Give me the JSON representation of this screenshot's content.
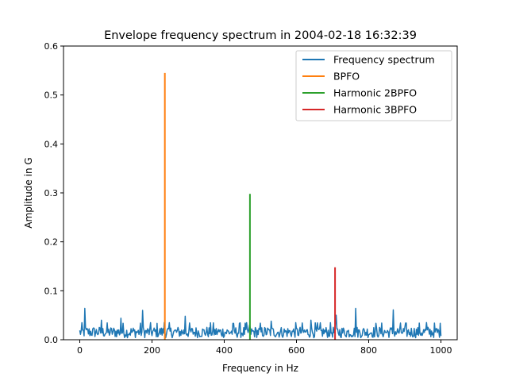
{
  "chart_data": {
    "type": "line",
    "title": "Envelope frequency spectrum in 2004-02-18 16:32:39",
    "xlabel": "Frequency in Hz",
    "ylabel": "Amplitude in G",
    "xlim": [
      -45,
      1045
    ],
    "ylim": [
      0,
      0.6
    ],
    "xticks": [
      "0",
      "200",
      "400",
      "600",
      "800",
      "1000"
    ],
    "yticks": [
      "0.0",
      "0.1",
      "0.2",
      "0.3",
      "0.4",
      "0.5",
      "0.6"
    ],
    "legend_position": "top-right",
    "grid": false,
    "spectrum_peaks": {
      "x": [
        15,
        60,
        115,
        175,
        235,
        293,
        470,
        530,
        640,
        710,
        765,
        868,
        960
      ],
      "y": [
        0.064,
        0.04,
        0.044,
        0.06,
        0.035,
        0.048,
        0.03,
        0.038,
        0.04,
        0.05,
        0.064,
        0.061,
        0.035
      ]
    },
    "series": [
      {
        "name": "Frequency spectrum",
        "color": "#1f77b4",
        "x_range": [
          0,
          1000
        ],
        "noise_floor": [
          0.0,
          0.035
        ]
      },
      {
        "name": "BPFO",
        "color": "#ff7f0e",
        "x": [
          235.6,
          235.6
        ],
        "y": [
          0,
          0.545
        ]
      },
      {
        "name": "Harmonic 2BPFO",
        "color": "#2ca02c",
        "x": [
          471.2,
          471.2
        ],
        "y": [
          0,
          0.298
        ]
      },
      {
        "name": "Harmonic 3BPFO",
        "color": "#d62728",
        "x": [
          706.8,
          706.8
        ],
        "y": [
          0,
          0.148
        ]
      }
    ]
  }
}
